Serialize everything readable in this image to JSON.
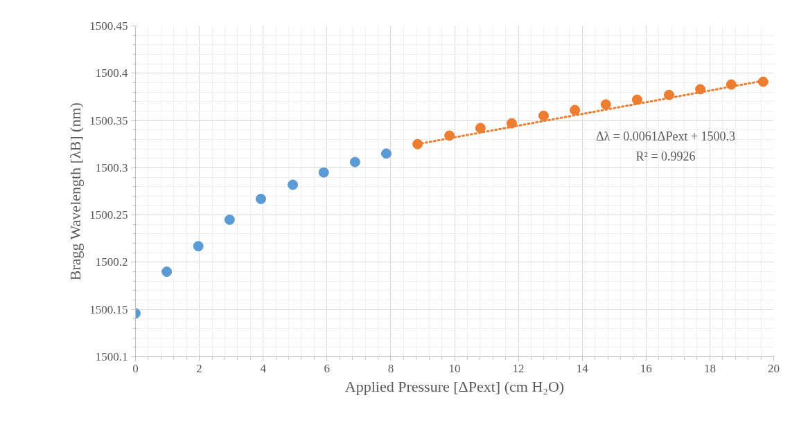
{
  "chart_data": {
    "type": "scatter",
    "xlabel": "Applied Pressure [ΔPext] (cm H₂O)",
    "ylabel": "Bragg Wavelength [λB] (nm)",
    "xlim": [
      0,
      20
    ],
    "xticks": [
      0,
      2,
      4,
      6,
      8,
      10,
      12,
      14,
      16,
      18,
      20
    ],
    "ylim": [
      1500.1,
      1500.45
    ],
    "yticks": [
      1500.1,
      1500.15,
      1500.2,
      1500.25,
      1500.3,
      1500.35,
      1500.4,
      1500.45
    ],
    "grid": true,
    "marker": "circle",
    "series": [
      {
        "color": "#5b9bd5",
        "x": [
          0,
          0.98,
          1.97,
          2.95,
          3.93,
          4.93,
          5.9,
          6.88,
          7.86
        ],
        "values": [
          1500.146,
          1500.19,
          1500.217,
          1500.245,
          1500.267,
          1500.282,
          1500.295,
          1500.306,
          1500.315
        ]
      },
      {
        "color": "#ed7d31",
        "x": [
          8.84,
          9.84,
          10.81,
          11.79,
          12.79,
          13.77,
          14.74,
          15.72,
          16.72,
          17.7,
          18.67,
          19.67
        ],
        "values": [
          1500.325,
          1500.334,
          1500.342,
          1500.347,
          1500.355,
          1500.361,
          1500.367,
          1500.372,
          1500.377,
          1500.383,
          1500.388,
          1500.391
        ]
      },
      {
        "type": "line",
        "color": "#ed7d31",
        "line_style": "dotted",
        "marker": "none",
        "x": [
          8.84,
          19.67
        ],
        "values": [
          1500.325,
          1500.392
        ]
      }
    ],
    "annotations": [
      "Δλ = 0.0061ΔPext + 1500.3",
      "R² = 0.9926"
    ]
  }
}
